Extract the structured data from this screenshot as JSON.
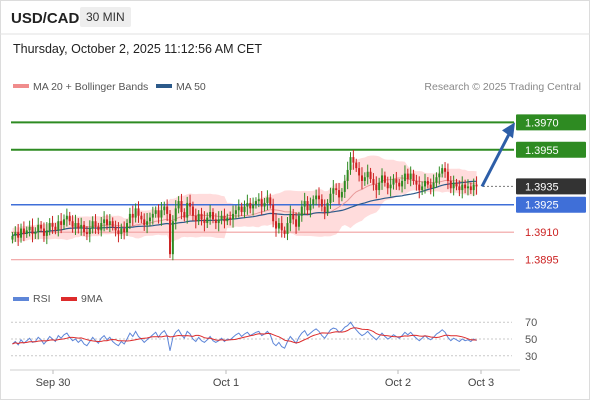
{
  "header": {
    "symbol": "USD/CAD",
    "timeframe": "30 MIN",
    "datetime": "Thursday, October 2, 2025 11:12:56 AM CET"
  },
  "legend": {
    "ma20": "MA 20 + Bollinger Bands",
    "ma50": "MA 50",
    "credit": "Research © 2025 Trading Central"
  },
  "colors": {
    "up": "#2e8b22",
    "down": "#cc2222",
    "blue": "#3f6fd8",
    "ma50": "#2c5a8a",
    "band": "#ffd6d6",
    "ma20": "#e89a9a",
    "rsi": "#5e86d8",
    "rsi_ma": "#dd2b2b",
    "current": "#333333"
  },
  "chart_data": [
    {
      "type": "candlestick",
      "series": [
        {
          "name": "MA 20 + Bollinger Bands"
        },
        {
          "name": "MA 50"
        }
      ],
      "x_labels": [
        "Sep 30",
        "Oct 1",
        "Oct 2",
        "Oct 3"
      ],
      "ylim": [
        1.3885,
        1.398
      ],
      "levels": [
        {
          "value": 1.397,
          "label": "1.3970",
          "kind": "target"
        },
        {
          "value": 1.3955,
          "label": "1.3955",
          "kind": "resistance"
        },
        {
          "value": 1.3935,
          "label": "1.3935",
          "kind": "current"
        },
        {
          "value": 1.3925,
          "label": "1.3925",
          "kind": "pivot"
        },
        {
          "value": 1.391,
          "label": "1.3910",
          "kind": "support"
        },
        {
          "value": 1.3895,
          "label": "1.3895",
          "kind": "support"
        }
      ],
      "close": [
        1.3908,
        1.391,
        1.3907,
        1.3912,
        1.3909,
        1.3911,
        1.3913,
        1.3909,
        1.391,
        1.3914,
        1.3912,
        1.3908,
        1.3911,
        1.3915,
        1.3913,
        1.3911,
        1.3916,
        1.3914,
        1.3917,
        1.3919,
        1.3916,
        1.3913,
        1.3915,
        1.3912,
        1.3914,
        1.391,
        1.3909,
        1.3912,
        1.3916,
        1.3913,
        1.3911,
        1.3915,
        1.3917,
        1.3914,
        1.3916,
        1.3913,
        1.3911,
        1.3909,
        1.3912,
        1.391,
        1.3915,
        1.392,
        1.3918,
        1.3923,
        1.3919,
        1.3917,
        1.3914,
        1.3916,
        1.3918,
        1.392,
        1.3922,
        1.3918,
        1.3922,
        1.3924,
        1.392,
        1.3898,
        1.3916,
        1.3923,
        1.3927,
        1.3921,
        1.3918,
        1.3926,
        1.3924,
        1.3919,
        1.3916,
        1.392,
        1.3917,
        1.3915,
        1.3918,
        1.3921,
        1.3917,
        1.3915,
        1.3917,
        1.3919,
        1.3916,
        1.3918,
        1.3917,
        1.392,
        1.3922,
        1.3924,
        1.3921,
        1.3924,
        1.3926,
        1.3923,
        1.3925,
        1.3927,
        1.3928,
        1.3924,
        1.3926,
        1.3929,
        1.3925,
        1.3916,
        1.3912,
        1.3915,
        1.3911,
        1.3909,
        1.3915,
        1.392,
        1.3917,
        1.3913,
        1.3919,
        1.3924,
        1.3927,
        1.3922,
        1.3925,
        1.3928,
        1.393,
        1.3928,
        1.3924,
        1.3921,
        1.3926,
        1.3931,
        1.3934,
        1.3933,
        1.3929,
        1.3932,
        1.3938,
        1.3944,
        1.3951,
        1.3948,
        1.3945,
        1.3941,
        1.3938,
        1.394,
        1.3943,
        1.3939,
        1.3936,
        1.3933,
        1.3937,
        1.3941,
        1.3937,
        1.3934,
        1.3936,
        1.3939,
        1.3937,
        1.3935,
        1.3938,
        1.3942,
        1.3939,
        1.3942,
        1.3938,
        1.3936,
        1.3933,
        1.3935,
        1.3938,
        1.3936,
        1.3934,
        1.3937,
        1.394,
        1.3942,
        1.3945,
        1.3943,
        1.3938,
        1.3934,
        1.3937,
        1.3935,
        1.3933,
        1.3936,
        1.3934,
        1.3935,
        1.3933,
        1.3936,
        1.3935
      ],
      "rsi_axis": [
        30,
        50,
        70
      ],
      "rsi": [
        44,
        47,
        43,
        49,
        45,
        48,
        51,
        46,
        47,
        52,
        49,
        44,
        48,
        53,
        50,
        47,
        54,
        51,
        55,
        57,
        52,
        48,
        50,
        46,
        49,
        44,
        42,
        47,
        52,
        48,
        45,
        51,
        54,
        49,
        52,
        47,
        44,
        42,
        47,
        44,
        50,
        57,
        53,
        59,
        53,
        50,
        46,
        49,
        52,
        55,
        58,
        52,
        57,
        60,
        54,
        36,
        52,
        58,
        61,
        55,
        51,
        59,
        56,
        50,
        47,
        52,
        48,
        46,
        49,
        53,
        48,
        46,
        48,
        51,
        47,
        50,
        49,
        52,
        55,
        57,
        53,
        56,
        58,
        54,
        56,
        58,
        59,
        54,
        56,
        59,
        55,
        45,
        42,
        46,
        41,
        39,
        47,
        53,
        49,
        45,
        52,
        57,
        60,
        54,
        57,
        60,
        62,
        59,
        54,
        51,
        56,
        61,
        63,
        62,
        58,
        60,
        64,
        66,
        70,
        65,
        61,
        57,
        54,
        56,
        59,
        55,
        52,
        49,
        53,
        57,
        53,
        50,
        52,
        55,
        53,
        51,
        54,
        58,
        55,
        58,
        54,
        51,
        48,
        51,
        54,
        51,
        49,
        52,
        56,
        58,
        61,
        58,
        52,
        48,
        51,
        49,
        47,
        50,
        48,
        49,
        47,
        50,
        48
      ]
    }
  ]
}
